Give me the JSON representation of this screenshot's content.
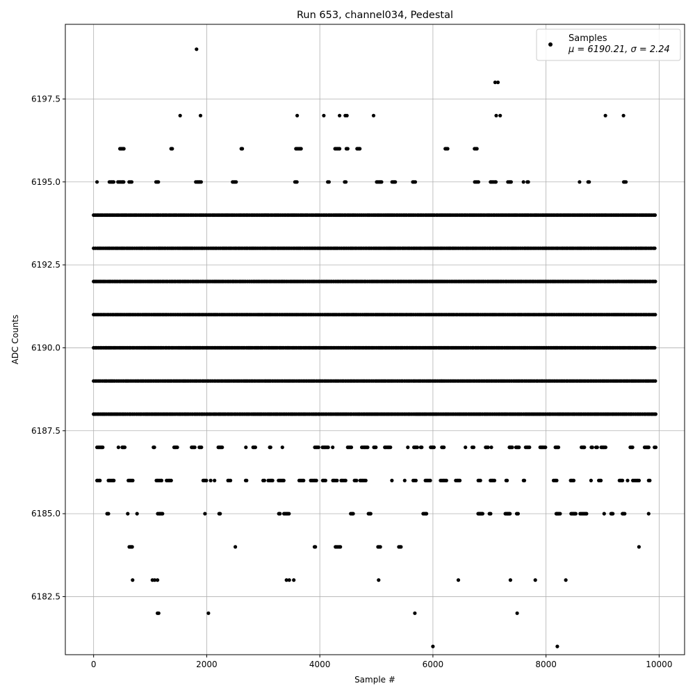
{
  "chart_data": {
    "type": "scatter",
    "title": "Run 653, channel034, Pedestal",
    "xlabel": "Sample #",
    "ylabel": "ADC Counts",
    "xlim": [
      -500,
      10450
    ],
    "ylim": [
      6180.75,
      6199.75
    ],
    "x_ticks": [
      0,
      2000,
      4000,
      6000,
      8000,
      10000
    ],
    "x_tick_labels": [
      "0",
      "2000",
      "4000",
      "6000",
      "8000",
      "10000"
    ],
    "y_ticks": [
      6182.5,
      6185.0,
      6187.5,
      6190.0,
      6192.5,
      6195.0,
      6197.5
    ],
    "y_tick_labels": [
      "6182.5",
      "6185.0",
      "6187.5",
      "6190.0",
      "6192.5",
      "6195.0",
      "6197.5"
    ],
    "grid": true,
    "legend": {
      "placement": "top-right",
      "series_label": "Samples",
      "stats_label": "μ = 6190.21, σ = 2.24"
    },
    "series": [
      {
        "name": "Samples",
        "color": "#000000",
        "n_samples": 10000,
        "mean": 6190.21,
        "sigma": 2.24,
        "x_range": [
          0,
          9950
        ],
        "dense_levels": [
          6188,
          6189,
          6190,
          6191,
          6192,
          6193,
          6194
        ],
        "sparse_levels": [
          6184,
          6185,
          6186,
          6187,
          6195,
          6196
        ],
        "outliers": [
          {
            "x": 1820,
            "y": 6199
          },
          {
            "x": 7100,
            "y": 6198
          },
          {
            "x": 7150,
            "y": 6198
          },
          {
            "x": 1530,
            "y": 6197
          },
          {
            "x": 1890,
            "y": 6197
          },
          {
            "x": 3600,
            "y": 6197
          },
          {
            "x": 4070,
            "y": 6197
          },
          {
            "x": 4350,
            "y": 6197
          },
          {
            "x": 4450,
            "y": 6197
          },
          {
            "x": 4480,
            "y": 6197
          },
          {
            "x": 4950,
            "y": 6197
          },
          {
            "x": 7120,
            "y": 6197
          },
          {
            "x": 7190,
            "y": 6197
          },
          {
            "x": 9050,
            "y": 6197
          },
          {
            "x": 9370,
            "y": 6197
          },
          {
            "x": 690,
            "y": 6183
          },
          {
            "x": 1040,
            "y": 6183
          },
          {
            "x": 1080,
            "y": 6183
          },
          {
            "x": 1130,
            "y": 6183
          },
          {
            "x": 3410,
            "y": 6183
          },
          {
            "x": 3460,
            "y": 6183
          },
          {
            "x": 3540,
            "y": 6183
          },
          {
            "x": 5040,
            "y": 6183
          },
          {
            "x": 6450,
            "y": 6183
          },
          {
            "x": 7370,
            "y": 6183
          },
          {
            "x": 7810,
            "y": 6183
          },
          {
            "x": 8350,
            "y": 6183
          },
          {
            "x": 1130,
            "y": 6182
          },
          {
            "x": 1150,
            "y": 6182
          },
          {
            "x": 2030,
            "y": 6182
          },
          {
            "x": 5680,
            "y": 6182
          },
          {
            "x": 7490,
            "y": 6182
          },
          {
            "x": 6000,
            "y": 6181
          },
          {
            "x": 8200,
            "y": 6181
          }
        ]
      }
    ]
  }
}
